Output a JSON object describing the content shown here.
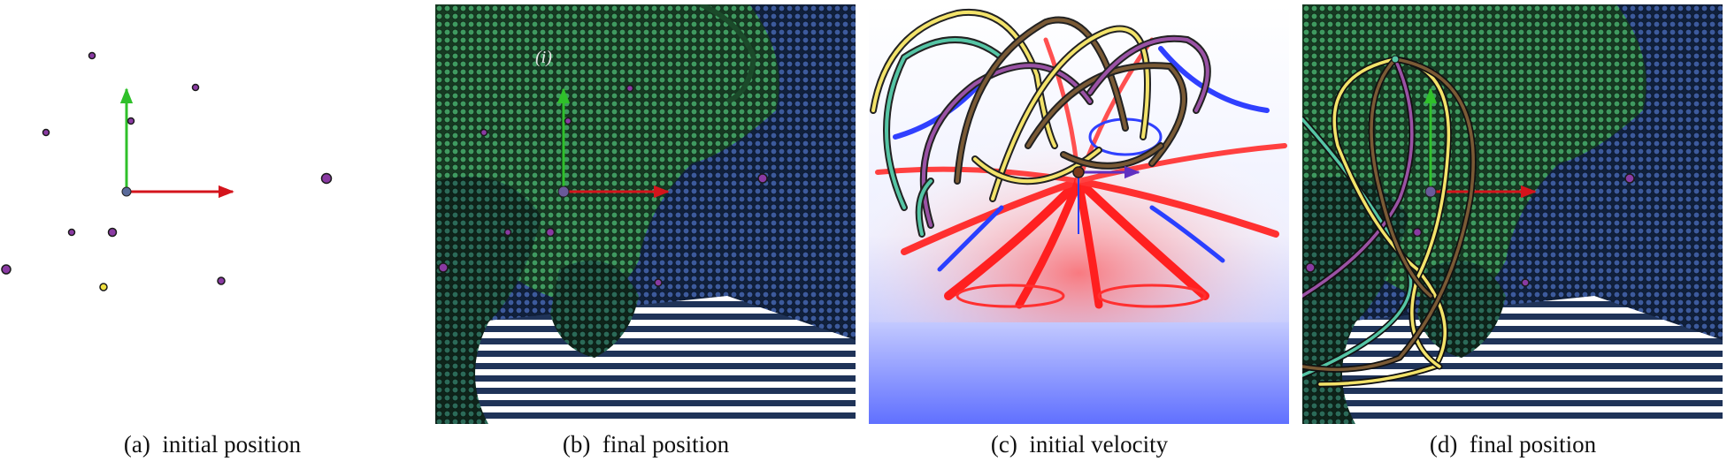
{
  "figure": {
    "panels": [
      {
        "id": "a",
        "label": "(a)",
        "caption": "initial position"
      },
      {
        "id": "b",
        "label": "(b)",
        "caption": "final position",
        "annotation": "(i)"
      },
      {
        "id": "c",
        "label": "(c)",
        "caption": "initial velocity"
      },
      {
        "id": "d",
        "label": "(d)",
        "caption": "final position"
      }
    ]
  },
  "colors": {
    "axis_x": "#d4141c",
    "axis_y": "#2fc02a",
    "particle": "#8a3aa3",
    "particle_highlight": "#f0e040",
    "cloth_green": "#3f9a60",
    "cloth_blue": "#3c5a9c",
    "field_red": "#ff1f1f",
    "field_blue": "#2a3fff",
    "trajectory_yellow": "#f3e36a",
    "trajectory_teal": "#55c5a5",
    "trajectory_purple": "#9a52a5",
    "trajectory_brown": "#7a5a35"
  }
}
